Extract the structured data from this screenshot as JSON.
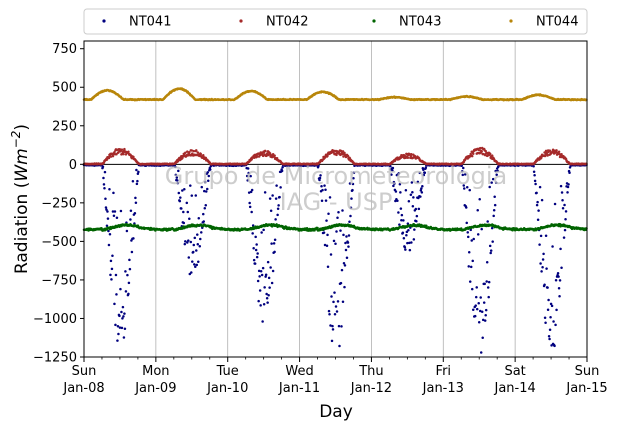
{
  "chart_data": {
    "type": "scatter",
    "xlabel": "Day",
    "ylabel_prefix": "Radiation (",
    "ylabel_unit": "Wm",
    "ylabel_exp": "−2",
    "ylabel_suffix": ")",
    "ylim": [
      -1250,
      800
    ],
    "yticks": [
      "−1250",
      "−1000",
      "−750",
      "−500",
      "−250",
      "0",
      "250",
      "500",
      "750"
    ],
    "ytick_values": [
      -1250,
      -1000,
      -750,
      -500,
      -250,
      0,
      250,
      500,
      750
    ],
    "xlim_days": [
      0,
      7
    ],
    "xticks": [
      {
        "day": "Sun",
        "date": "Jan-08"
      },
      {
        "day": "Mon",
        "date": "Jan-09"
      },
      {
        "day": "Tue",
        "date": "Jan-10"
      },
      {
        "day": "Wed",
        "date": "Jan-11"
      },
      {
        "day": "Thu",
        "date": "Jan-12"
      },
      {
        "day": "Fri",
        "date": "Jan-13"
      },
      {
        "day": "Sat",
        "date": "Jan-14"
      },
      {
        "day": "Sun",
        "date": "Jan-15"
      }
    ],
    "grid_x": true,
    "zero_line": true,
    "legend": {
      "placement": "top-outside",
      "columns": 4
    },
    "watermark": {
      "line1": "Grupo de Micrometeorologia",
      "line2": "IAG - USP"
    },
    "series": [
      {
        "name": "NT041",
        "color": "#00007f",
        "description": "negative daytime values, near 0 at night",
        "daily_minimum": [
          -1150,
          -700,
          -1000,
          -1180,
          -550,
          -1200,
          -1170
        ]
      },
      {
        "name": "NT042",
        "color": "#a52a2a",
        "description": "near 0, daytime peaks",
        "daily_peak": [
          105,
          95,
          90,
          100,
          70,
          110,
          100
        ]
      },
      {
        "name": "NT043",
        "color": "#006400",
        "description": "around -420 to -380",
        "baseline": -415
      },
      {
        "name": "NT044",
        "color": "#b8860b",
        "description": "around 410 to 480",
        "baseline": 420,
        "daily_peak": [
          480,
          490,
          475,
          470,
          435,
          440,
          450
        ]
      }
    ]
  }
}
